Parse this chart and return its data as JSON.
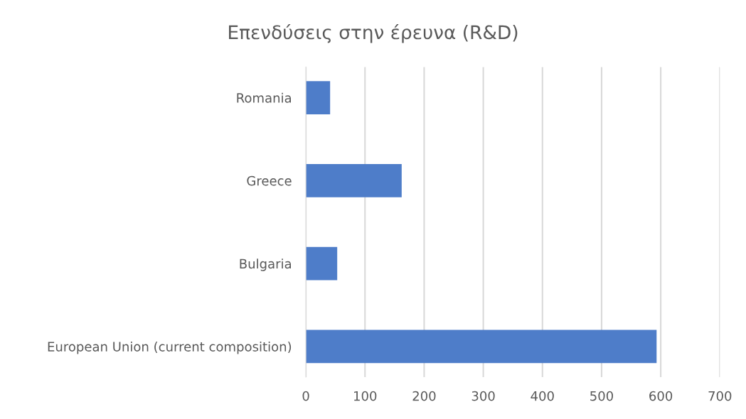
{
  "chart_data": {
    "type": "bar",
    "orientation": "horizontal",
    "title": "Επενδύσεις στην έρευνα (R&D)",
    "categories": [
      "Romania",
      "Greece",
      "Bulgaria",
      "European Union (current composition)"
    ],
    "values": [
      41,
      162,
      53,
      593
    ],
    "color": "#4e7dc9",
    "xlim": [
      0,
      700
    ],
    "xticks": [
      0,
      100,
      200,
      300,
      400,
      500,
      600,
      700
    ],
    "grid": "x",
    "legend": false
  }
}
